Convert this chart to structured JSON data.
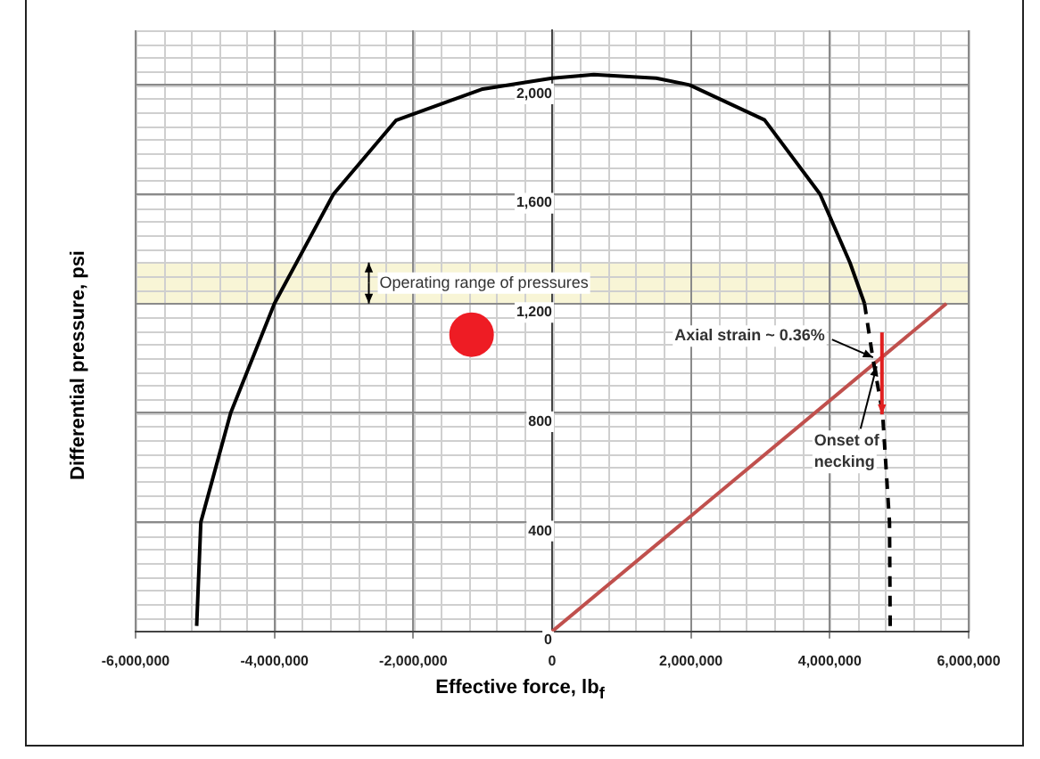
{
  "chart_data": {
    "type": "line",
    "xlabel": "Effective force, lb$_{f}$",
    "ylabel": "Differential pressure, psi",
    "xlim": [
      -6000000,
      6000000
    ],
    "xticks": [
      {
        "value": -6000000,
        "label": "-6,000,000"
      },
      {
        "value": -4000000,
        "label": "-4,000,000"
      },
      {
        "value": -2000000,
        "label": "-2,000,000"
      },
      0,
      {
        "value": 2000000,
        "label": "2,000,000"
      },
      {
        "value": 4000000,
        "label": "4,000,000"
      },
      {
        "value": 6000000,
        "label": "6,000,000"
      }
    ],
    "ylim": [
      0,
      2200
    ],
    "yticks": [
      0,
      400,
      800,
      {
        "value": 1200,
        "label": "1,200"
      },
      {
        "value": 1600,
        "label": "1,600"
      },
      {
        "value": 2000,
        "label": "2,000"
      }
    ],
    "grid": true,
    "marker": "none",
    "line_style": "solid",
    "series": [
      {
        "color": "#000000",
        "x": [
          -5120000,
          -5060000,
          -4630000,
          -4000000,
          -3150000,
          -2250000,
          -1000000,
          0,
          600000,
          1500000,
          1980000,
          3060000,
          3860000,
          4290000,
          4500000
        ],
        "values": [
          20,
          400,
          800,
          1200,
          1600,
          1870,
          1985,
          2025,
          2038,
          2025,
          2000,
          1872,
          1600,
          1350,
          1200
        ]
      },
      {
        "color": "#000000",
        "line_style": "dashed",
        "x": [
          4500000,
          4620000,
          4760000,
          4860000,
          4870000
        ],
        "values": [
          1200,
          1000,
          800,
          400,
          10
        ]
      },
      {
        "color": "#c0504d",
        "x": [
          0,
          5680000
        ],
        "values": [
          0,
          1200
        ]
      },
      {
        "type": "scatter",
        "color": "#ee1c24",
        "marker": "circle",
        "x": [
          -1160000
        ],
        "values": [
          1086
        ]
      }
    ],
    "bands": [
      {
        "axis": "y",
        "from": 1200,
        "to": 1350,
        "label": "Operating range of pressures",
        "color": "#f8f5d6"
      }
    ],
    "annotations": [
      {
        "text": "Axial strain ~ 0.36%",
        "x": 4700000,
        "y": 990
      },
      {
        "text": "Onset of necking",
        "x": 4700000,
        "y": 990
      }
    ]
  }
}
